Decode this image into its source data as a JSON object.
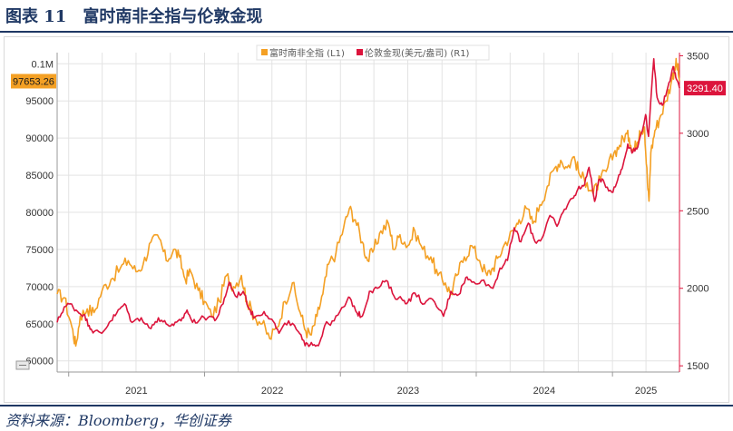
{
  "figure": {
    "title": "图表 11　富时南非全指与伦敦金现",
    "source": "资料来源：Bloomberg，华创证券"
  },
  "colors": {
    "header": "#1f3864",
    "series_left": "#f4a024",
    "series_right": "#dc143c",
    "grid": "#e3e3e3",
    "axis": "#999999"
  },
  "chart_data": {
    "type": "line",
    "x_ticks": [
      "2021",
      "2022",
      "2023",
      "2024",
      "2025"
    ],
    "x_range": [
      "2020-12-01",
      "2025-06-30"
    ],
    "y_left": {
      "ticks": [
        60000,
        65000,
        70000,
        75000,
        80000,
        85000,
        90000,
        95000,
        100000
      ],
      "tick_labels": [
        "60000",
        "65000",
        "70000",
        "75000",
        "80000",
        "85000",
        "90000",
        "95000",
        "0.1M"
      ],
      "range": [
        58500,
        101500
      ]
    },
    "y_right": {
      "ticks": [
        1500,
        2000,
        2500,
        3000,
        3500
      ],
      "tick_labels": [
        "1500",
        "2000",
        "2500",
        "3000",
        "3500"
      ],
      "range": [
        1460,
        3520
      ]
    },
    "legend_position": "top-center",
    "grid": true,
    "series": [
      {
        "name": "富时南非全指 (L1)",
        "axis": "left",
        "last_value_label": "97653.26",
        "points": [
          [
            "2020-12-01",
            69000
          ],
          [
            "2020-12-20",
            68500
          ],
          [
            "2021-01-10",
            64500
          ],
          [
            "2021-01-20",
            62000
          ],
          [
            "2021-02-01",
            66000
          ],
          [
            "2021-02-20",
            67000
          ],
          [
            "2021-03-10",
            66500
          ],
          [
            "2021-04-01",
            69500
          ],
          [
            "2021-04-25",
            71000
          ],
          [
            "2021-05-20",
            72500
          ],
          [
            "2021-06-10",
            73500
          ],
          [
            "2021-07-01",
            72000
          ],
          [
            "2021-07-20",
            73000
          ],
          [
            "2021-08-10",
            76000
          ],
          [
            "2021-09-01",
            76500
          ],
          [
            "2021-09-20",
            73500
          ],
          [
            "2021-10-10",
            75000
          ],
          [
            "2021-10-25",
            74000
          ],
          [
            "2021-11-10",
            71000
          ],
          [
            "2021-11-25",
            72000
          ],
          [
            "2021-12-15",
            69500
          ],
          [
            "2022-01-01",
            68000
          ],
          [
            "2022-01-20",
            66000
          ],
          [
            "2022-02-10",
            68000
          ],
          [
            "2022-03-01",
            71500
          ],
          [
            "2022-03-20",
            70000
          ],
          [
            "2022-04-10",
            71500
          ],
          [
            "2022-04-25",
            68000
          ],
          [
            "2022-05-15",
            66000
          ],
          [
            "2022-06-05",
            65000
          ],
          [
            "2022-06-25",
            63000
          ],
          [
            "2022-07-15",
            64500
          ],
          [
            "2022-08-05",
            68000
          ],
          [
            "2022-08-25",
            70500
          ],
          [
            "2022-09-15",
            66500
          ],
          [
            "2022-09-30",
            64000
          ],
          [
            "2022-10-15",
            63500
          ],
          [
            "2022-10-30",
            66000
          ],
          [
            "2022-11-15",
            69000
          ],
          [
            "2022-11-30",
            73000
          ],
          [
            "2022-12-20",
            74500
          ],
          [
            "2023-01-10",
            78000
          ],
          [
            "2023-01-25",
            80500
          ],
          [
            "2023-02-10",
            79000
          ],
          [
            "2023-03-01",
            76000
          ],
          [
            "2023-03-15",
            73500
          ],
          [
            "2023-04-01",
            75000
          ],
          [
            "2023-04-20",
            77500
          ],
          [
            "2023-05-10",
            78500
          ],
          [
            "2023-05-25",
            75000
          ],
          [
            "2023-06-10",
            77000
          ],
          [
            "2023-07-01",
            75500
          ],
          [
            "2023-07-20",
            77500
          ],
          [
            "2023-08-10",
            75000
          ],
          [
            "2023-09-01",
            74000
          ],
          [
            "2023-09-20",
            71500
          ],
          [
            "2023-10-10",
            70500
          ],
          [
            "2023-10-25",
            69000
          ],
          [
            "2023-11-10",
            71500
          ],
          [
            "2023-11-30",
            74000
          ],
          [
            "2023-12-20",
            75500
          ],
          [
            "2024-01-10",
            73500
          ],
          [
            "2024-01-30",
            71500
          ],
          [
            "2024-02-15",
            72500
          ],
          [
            "2024-03-01",
            74000
          ],
          [
            "2024-03-20",
            76000
          ],
          [
            "2024-04-10",
            77500
          ],
          [
            "2024-04-25",
            79000
          ],
          [
            "2024-05-15",
            80500
          ],
          [
            "2024-06-01",
            78500
          ],
          [
            "2024-06-20",
            81000
          ],
          [
            "2024-07-10",
            83500
          ],
          [
            "2024-07-30",
            86000
          ],
          [
            "2024-08-15",
            87000
          ],
          [
            "2024-09-01",
            86000
          ],
          [
            "2024-09-20",
            87500
          ],
          [
            "2024-10-05",
            85000
          ],
          [
            "2024-10-25",
            84000
          ],
          [
            "2024-11-10",
            82500
          ],
          [
            "2024-11-30",
            84500
          ],
          [
            "2024-12-15",
            85500
          ],
          [
            "2025-01-05",
            88000
          ],
          [
            "2025-01-20",
            89000
          ],
          [
            "2025-02-05",
            90500
          ],
          [
            "2025-02-15",
            90000
          ],
          [
            "2025-02-25",
            88500
          ],
          [
            "2025-03-05",
            89000
          ],
          [
            "2025-03-15",
            91000
          ],
          [
            "2025-03-28",
            91500
          ],
          [
            "2025-04-05",
            84000
          ],
          [
            "2025-04-09",
            81500
          ],
          [
            "2025-04-14",
            88000
          ],
          [
            "2025-04-25",
            91000
          ],
          [
            "2025-05-10",
            93000
          ],
          [
            "2025-05-25",
            95000
          ],
          [
            "2025-06-10",
            98000
          ],
          [
            "2025-06-20",
            100000
          ],
          [
            "2025-06-25",
            99500
          ],
          [
            "2025-06-30",
            97653
          ]
        ]
      },
      {
        "name": "伦敦金现(美元/盎司) (R1)",
        "axis": "right",
        "last_value_label": "3291.40",
        "points": [
          [
            "2020-12-01",
            1780
          ],
          [
            "2020-12-20",
            1880
          ],
          [
            "2021-01-05",
            1900
          ],
          [
            "2021-01-25",
            1850
          ],
          [
            "2021-02-10",
            1830
          ],
          [
            "2021-02-25",
            1760
          ],
          [
            "2021-03-10",
            1720
          ],
          [
            "2021-03-31",
            1710
          ],
          [
            "2021-04-20",
            1780
          ],
          [
            "2021-05-10",
            1840
          ],
          [
            "2021-05-31",
            1900
          ],
          [
            "2021-06-20",
            1780
          ],
          [
            "2021-07-15",
            1810
          ],
          [
            "2021-08-10",
            1740
          ],
          [
            "2021-08-30",
            1810
          ],
          [
            "2021-09-20",
            1770
          ],
          [
            "2021-10-10",
            1760
          ],
          [
            "2021-10-30",
            1790
          ],
          [
            "2021-11-15",
            1860
          ],
          [
            "2021-11-30",
            1780
          ],
          [
            "2021-12-20",
            1800
          ],
          [
            "2022-01-15",
            1820
          ],
          [
            "2022-02-01",
            1800
          ],
          [
            "2022-02-20",
            1900
          ],
          [
            "2022-03-08",
            2040
          ],
          [
            "2022-03-25",
            1950
          ],
          [
            "2022-04-15",
            1980
          ],
          [
            "2022-05-01",
            1870
          ],
          [
            "2022-05-15",
            1810
          ],
          [
            "2022-06-10",
            1850
          ],
          [
            "2022-07-01",
            1800
          ],
          [
            "2022-07-20",
            1710
          ],
          [
            "2022-08-15",
            1790
          ],
          [
            "2022-09-10",
            1720
          ],
          [
            "2022-09-28",
            1630
          ],
          [
            "2022-10-15",
            1650
          ],
          [
            "2022-11-03",
            1630
          ],
          [
            "2022-11-20",
            1760
          ],
          [
            "2022-12-15",
            1790
          ],
          [
            "2023-01-10",
            1880
          ],
          [
            "2023-01-26",
            1940
          ],
          [
            "2023-02-15",
            1840
          ],
          [
            "2023-03-01",
            1820
          ],
          [
            "2023-03-20",
            1980
          ],
          [
            "2023-04-10",
            2000
          ],
          [
            "2023-05-04",
            2050
          ],
          [
            "2023-05-25",
            1950
          ],
          [
            "2023-06-15",
            1930
          ],
          [
            "2023-07-01",
            1910
          ],
          [
            "2023-07-20",
            1970
          ],
          [
            "2023-08-15",
            1900
          ],
          [
            "2023-09-05",
            1930
          ],
          [
            "2023-10-05",
            1820
          ],
          [
            "2023-10-25",
            1980
          ],
          [
            "2023-11-15",
            1960
          ],
          [
            "2023-12-04",
            2070
          ],
          [
            "2023-12-20",
            2040
          ],
          [
            "2024-01-15",
            2050
          ],
          [
            "2024-02-15",
            2000
          ],
          [
            "2024-03-05",
            2130
          ],
          [
            "2024-03-25",
            2180
          ],
          [
            "2024-04-12",
            2390
          ],
          [
            "2024-04-30",
            2300
          ],
          [
            "2024-05-20",
            2420
          ],
          [
            "2024-06-07",
            2300
          ],
          [
            "2024-06-25",
            2320
          ],
          [
            "2024-07-17",
            2470
          ],
          [
            "2024-08-05",
            2400
          ],
          [
            "2024-08-25",
            2510
          ],
          [
            "2024-09-15",
            2580
          ],
          [
            "2024-09-30",
            2640
          ],
          [
            "2024-10-15",
            2660
          ],
          [
            "2024-10-30",
            2780
          ],
          [
            "2024-11-14",
            2560
          ],
          [
            "2024-11-25",
            2700
          ],
          [
            "2024-12-10",
            2680
          ],
          [
            "2024-12-30",
            2620
          ],
          [
            "2025-01-15",
            2700
          ],
          [
            "2025-01-30",
            2800
          ],
          [
            "2025-02-11",
            2930
          ],
          [
            "2025-02-25",
            2880
          ],
          [
            "2025-03-10",
            2910
          ],
          [
            "2025-03-31",
            3120
          ],
          [
            "2025-04-08",
            2980
          ],
          [
            "2025-04-22",
            3480
          ],
          [
            "2025-05-01",
            3230
          ],
          [
            "2025-05-15",
            3180
          ],
          [
            "2025-05-30",
            3300
          ],
          [
            "2025-06-13",
            3430
          ],
          [
            "2025-06-20",
            3360
          ],
          [
            "2025-06-30",
            3291
          ]
        ]
      }
    ]
  }
}
